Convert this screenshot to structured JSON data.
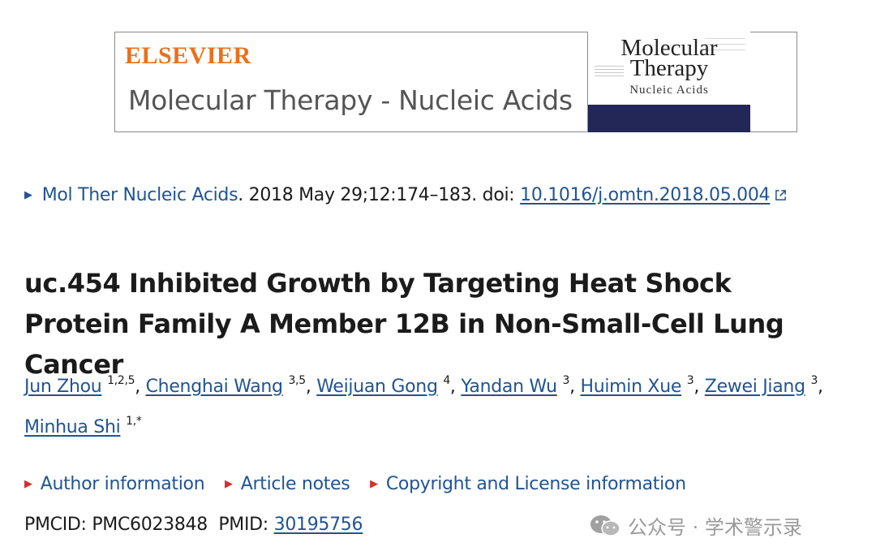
{
  "banner": {
    "publisher": "ELSEVIER",
    "journal_name": "Molecular Therapy - Nucleic Acids",
    "cover_title": "Molecular Therapy",
    "cover_subtitle": "Nucleic Acids"
  },
  "citation": {
    "journal_link": "Mol Ther Nucleic Acids",
    "details": ". 2018 May 29;12:174–183. doi: ",
    "doi": "10.1016/j.omtn.2018.05.004"
  },
  "article": {
    "title": "uc.454 Inhibited Growth by Targeting Heat Shock Protein Family A Member 12B in Non-Small-Cell Lung Cancer"
  },
  "authors": [
    {
      "name": "Jun Zhou",
      "aff": "1,2,5"
    },
    {
      "name": "Chenghai Wang",
      "aff": "3,5"
    },
    {
      "name": "Weijuan Gong",
      "aff": "4"
    },
    {
      "name": "Yandan Wu",
      "aff": "3"
    },
    {
      "name": "Huimin Xue",
      "aff": "3"
    },
    {
      "name": "Zewei Jiang",
      "aff": "3"
    },
    {
      "name": "Minhua Shi",
      "aff": "1,*"
    }
  ],
  "info_links": {
    "author_info": "Author information",
    "article_notes": "Article notes",
    "copyright": "Copyright and License information"
  },
  "ids": {
    "pmcid_label": "PMCID: PMC6023848",
    "pmid_label": "PMID:",
    "pmid": "30195756"
  },
  "watermark": {
    "text": "公众号 · 学术警示录"
  },
  "colors": {
    "link": "#205493",
    "elsevier_orange": "#e9711c",
    "cover_band": "#232757",
    "triangle_red": "#d62f2f"
  }
}
